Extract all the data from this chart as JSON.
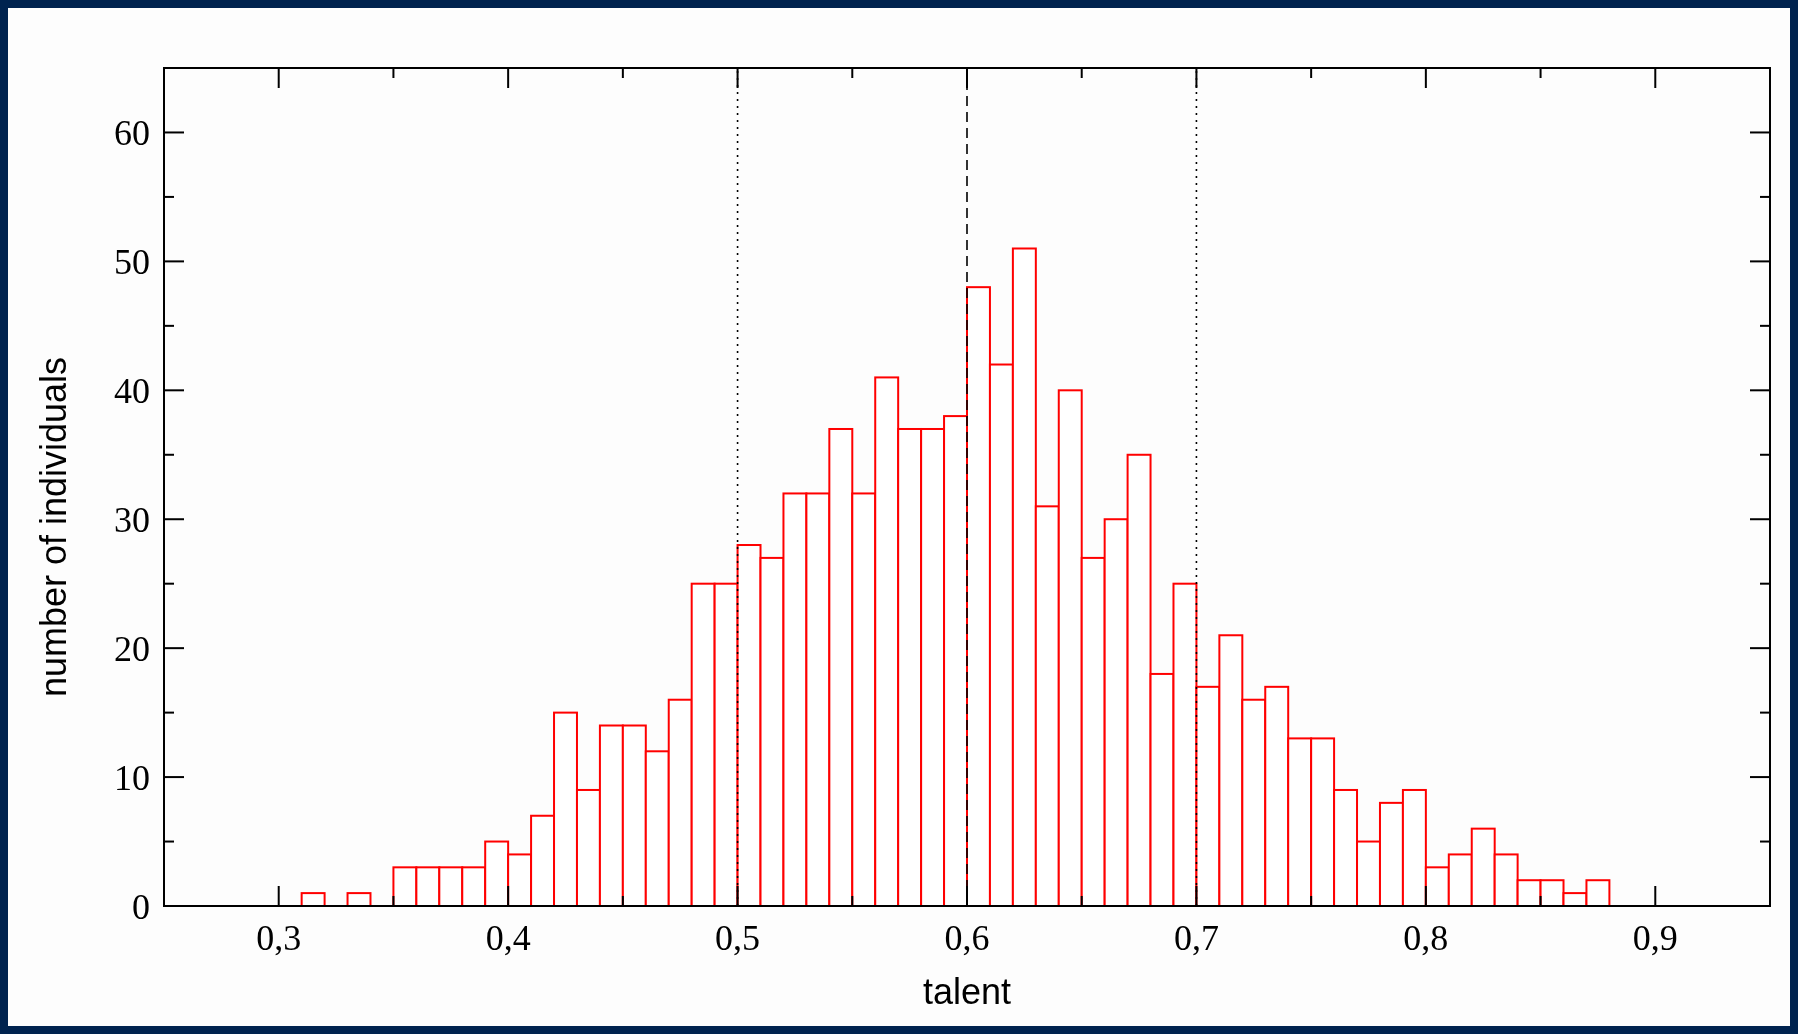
{
  "chart_data": {
    "type": "histogram",
    "xlabel": "talent",
    "ylabel": "number of individuals",
    "bins": [
      0.31,
      0.32,
      0.33,
      0.34,
      0.35,
      0.36,
      0.37,
      0.38,
      0.39,
      0.4,
      0.41,
      0.42,
      0.43,
      0.44,
      0.45,
      0.46,
      0.47,
      0.48,
      0.49,
      0.5,
      0.51,
      0.52,
      0.53,
      0.54,
      0.55,
      0.56,
      0.57,
      0.58,
      0.59,
      0.6,
      0.61,
      0.62,
      0.63,
      0.64,
      0.65,
      0.66,
      0.67,
      0.68,
      0.69,
      0.7,
      0.71,
      0.72,
      0.73,
      0.74,
      0.75,
      0.76,
      0.77,
      0.78,
      0.79,
      0.8,
      0.81,
      0.82,
      0.83,
      0.84,
      0.85,
      0.86,
      0.87,
      0.88
    ],
    "values": [
      1,
      0,
      1,
      0,
      3,
      3,
      3,
      3,
      5,
      4,
      7,
      15,
      9,
      14,
      14,
      12,
      16,
      25,
      25,
      28,
      27,
      32,
      32,
      37,
      32,
      41,
      37,
      37,
      38,
      48,
      42,
      51,
      31,
      40,
      27,
      30,
      35,
      18,
      25,
      17,
      21,
      16,
      17,
      13,
      13,
      9,
      5,
      8,
      9,
      3,
      4,
      6,
      4,
      2,
      2,
      1,
      2
    ],
    "color": "#ff0000",
    "xlim": [
      0.25,
      0.95
    ],
    "xticks": [
      {
        "value": 0.3,
        "label": "0,3"
      },
      {
        "value": 0.35,
        "label": null
      },
      {
        "value": 0.4,
        "label": "0,4"
      },
      {
        "value": 0.45,
        "label": null
      },
      {
        "value": 0.5,
        "label": "0,5"
      },
      {
        "value": 0.55,
        "label": null
      },
      {
        "value": 0.6,
        "label": "0,6"
      },
      {
        "value": 0.65,
        "label": null
      },
      {
        "value": 0.7,
        "label": "0,7"
      },
      {
        "value": 0.75,
        "label": null
      },
      {
        "value": 0.8,
        "label": "0,8"
      },
      {
        "value": 0.85,
        "label": null
      },
      {
        "value": 0.9,
        "label": "0,9"
      }
    ],
    "ylim": [
      0,
      65
    ],
    "yticks": [
      0,
      {
        "value": 5,
        "label": null
      },
      10,
      {
        "value": 15,
        "label": null
      },
      20,
      {
        "value": 25,
        "label": null
      },
      30,
      {
        "value": 35,
        "label": null
      },
      40,
      {
        "value": 45,
        "label": null
      },
      50,
      {
        "value": 55,
        "label": null
      },
      60
    ],
    "ref_lines": [
      {
        "axis": "x",
        "value": 0.5,
        "line_style": "dotted",
        "color": "#000000"
      },
      {
        "axis": "x",
        "value": 0.6,
        "line_style": "dashed",
        "color": "#000000"
      },
      {
        "axis": "x",
        "value": 0.7,
        "line_style": "dotted",
        "color": "#000000"
      }
    ],
    "grid": false
  }
}
